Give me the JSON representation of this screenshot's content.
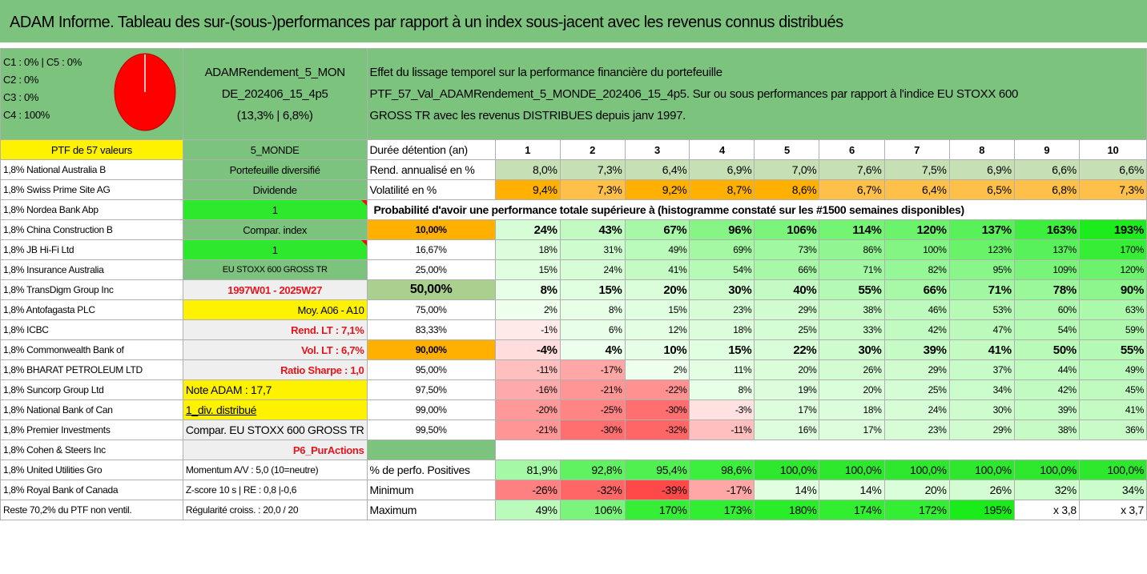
{
  "title": "ADAM Informe. Tableau des sur-(sous-)performances par rapport à un index sous-jacent avec les revenus connus distribués",
  "header": {
    "config_lines": [
      "C1 : 0% | C5 : 0%",
      "C2 : 0%",
      "C3 : 0%",
      "C4 : 100%"
    ],
    "portfolio_name_lines": [
      "ADAMRendement_5_MON",
      "DE_202406_15_4p5",
      "(13,3% | 6,8%)"
    ],
    "description_lines": [
      "Effet du lissage temporel sur la performance financière du portefeuille",
      "PTF_57_Val_ADAMRendement_5_MONDE_202406_15_4p5. Sur ou sous performances par rapport à l'indice EU STOXX 600",
      "GROSS TR avec les revenus DISTRIBUES depuis janv 1997."
    ]
  },
  "ptf_label": "PTF de 57 valeurs",
  "category_label": "5_MONDE",
  "duration_label": "Durée détention (an)",
  "years": [
    "1",
    "2",
    "3",
    "4",
    "5",
    "6",
    "7",
    "8",
    "9",
    "10"
  ],
  "holdings": [
    "1,8% National Australia B",
    "1,8% Swiss Prime Site AG",
    "1,8% Nordea Bank Abp",
    "1,8% China Construction B",
    "1,8% JB Hi-Fi Ltd",
    "1,8% Insurance Australia",
    "1,8% TransDigm Group Inc",
    "1,8% Antofagasta PLC",
    "1,8% ICBC",
    "1,8% Commonwealth Bank of",
    "1,8% BHARAT PETROLEUM LTD",
    "1,8% Suncorp Group Ltd",
    "1,8% National Bank of Can",
    "1,8% Premier Investments",
    "1,8% Cohen & Steers Inc",
    "1,8% United Utilities Gro",
    "1,8% Royal Bank of Canada",
    "Reste 70,2% du PTF non ventil."
  ],
  "info_col": [
    "Portefeuille diversifié",
    "Dividende",
    "1",
    "Compar. index",
    "1",
    "EU STOXX 600 GROSS TR",
    "1997W01 - 2025W27",
    "Moy. A06 - A10",
    "Rend. LT : 7,1%",
    "Vol. LT : 6,7%",
    "Ratio Sharpe : 1,0",
    "Note ADAM : 17,7",
    "1_div. distribué",
    "Compar. EU STOXX 600 GROSS TR",
    "P6_PurActions",
    "Momentum A/V : 5,0 (10=neutre)",
    "Z-score 10 s | RE : 0,8 |-0,6",
    "Régularité croiss. : 20,0 / 20"
  ],
  "rend_label": "Rend. annualisé en %",
  "rend": [
    "8,0%",
    "7,3%",
    "6,4%",
    "6,9%",
    "7,0%",
    "7,6%",
    "7,5%",
    "6,9%",
    "6,6%",
    "6,6%"
  ],
  "vol_label": "Volatilité en %",
  "vol": [
    "9,4%",
    "7,3%",
    "9,2%",
    "8,7%",
    "8,6%",
    "6,7%",
    "6,4%",
    "6,5%",
    "6,8%",
    "7,3%"
  ],
  "prob_label": "Probabilité d'avoir une performance totale supérieure à (histogramme constaté sur les #1500 semaines disponibles)",
  "quantiles": [
    {
      "q": "10,00%",
      "v": [
        "24%",
        "43%",
        "67%",
        "96%",
        "106%",
        "114%",
        "120%",
        "137%",
        "163%",
        "193%"
      ]
    },
    {
      "q": "16,67%",
      "v": [
        "18%",
        "31%",
        "49%",
        "69%",
        "73%",
        "86%",
        "100%",
        "123%",
        "137%",
        "170%"
      ]
    },
    {
      "q": "25,00%",
      "v": [
        "15%",
        "24%",
        "41%",
        "54%",
        "66%",
        "71%",
        "82%",
        "95%",
        "109%",
        "120%"
      ]
    },
    {
      "q": "50,00%",
      "v": [
        "8%",
        "15%",
        "20%",
        "30%",
        "40%",
        "55%",
        "66%",
        "71%",
        "78%",
        "90%"
      ]
    },
    {
      "q": "75,00%",
      "v": [
        "2%",
        "8%",
        "15%",
        "23%",
        "29%",
        "38%",
        "46%",
        "53%",
        "60%",
        "63%"
      ]
    },
    {
      "q": "83,33%",
      "v": [
        "-1%",
        "6%",
        "12%",
        "18%",
        "25%",
        "33%",
        "42%",
        "47%",
        "54%",
        "59%"
      ]
    },
    {
      "q": "90,00%",
      "v": [
        "-4%",
        "4%",
        "10%",
        "15%",
        "22%",
        "30%",
        "39%",
        "41%",
        "50%",
        "55%"
      ]
    },
    {
      "q": "95,00%",
      "v": [
        "-11%",
        "-17%",
        "2%",
        "11%",
        "20%",
        "26%",
        "29%",
        "37%",
        "44%",
        "49%"
      ]
    },
    {
      "q": "97,50%",
      "v": [
        "-16%",
        "-21%",
        "-22%",
        "8%",
        "19%",
        "20%",
        "25%",
        "34%",
        "42%",
        "45%"
      ]
    },
    {
      "q": "99,00%",
      "v": [
        "-20%",
        "-25%",
        "-30%",
        "-3%",
        "17%",
        "18%",
        "24%",
        "30%",
        "39%",
        "41%"
      ]
    },
    {
      "q": "99,50%",
      "v": [
        "-21%",
        "-30%",
        "-32%",
        "-11%",
        "16%",
        "17%",
        "23%",
        "29%",
        "38%",
        "36%"
      ]
    }
  ],
  "pos_label": "% de perfo. Positives",
  "pos": [
    "81,9%",
    "92,8%",
    "95,4%",
    "98,6%",
    "100,0%",
    "100,0%",
    "100,0%",
    "100,0%",
    "100,0%",
    "100,0%"
  ],
  "min_label": "Minimum",
  "min": [
    "-26%",
    "-32%",
    "-39%",
    "-17%",
    "14%",
    "14%",
    "20%",
    "26%",
    "32%",
    "34%"
  ],
  "max_label": "Maximum",
  "max": [
    "49%",
    "106%",
    "170%",
    "173%",
    "180%",
    "174%",
    "172%",
    "195%",
    "x 3,8",
    "x 3,7"
  ],
  "pie": {
    "color": "#ff0000",
    "needle": "#ffffff"
  }
}
